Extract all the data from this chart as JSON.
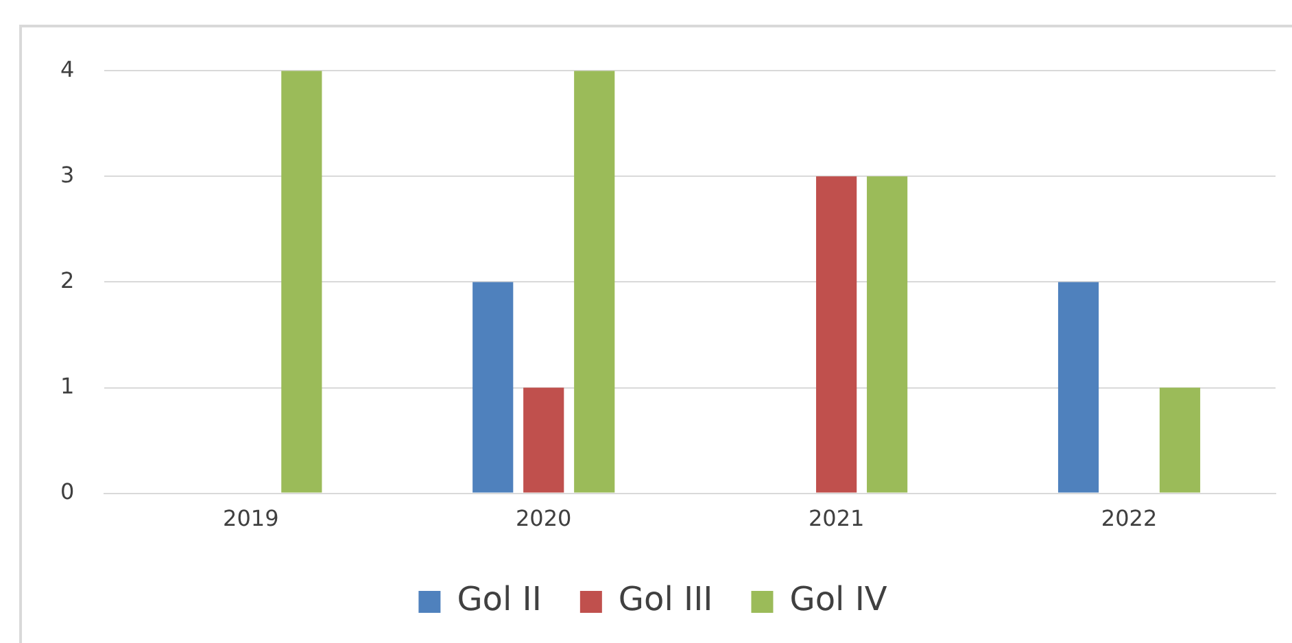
{
  "chart_data": {
    "type": "bar",
    "categories": [
      "2019",
      "2020",
      "2021",
      "2022"
    ],
    "series": [
      {
        "name": "Gol II",
        "color": "#4f81bd",
        "values": [
          0,
          2,
          0,
          2
        ]
      },
      {
        "name": "Gol III",
        "color": "#c0504d",
        "values": [
          0,
          1,
          3,
          0
        ]
      },
      {
        "name": "Gol IV",
        "color": "#9bbb59",
        "values": [
          4,
          4,
          3,
          1
        ]
      }
    ],
    "ylim": [
      0,
      4
    ],
    "yticks": [
      0,
      1,
      2,
      3,
      4
    ],
    "grid": "y",
    "legend": "bottom"
  }
}
